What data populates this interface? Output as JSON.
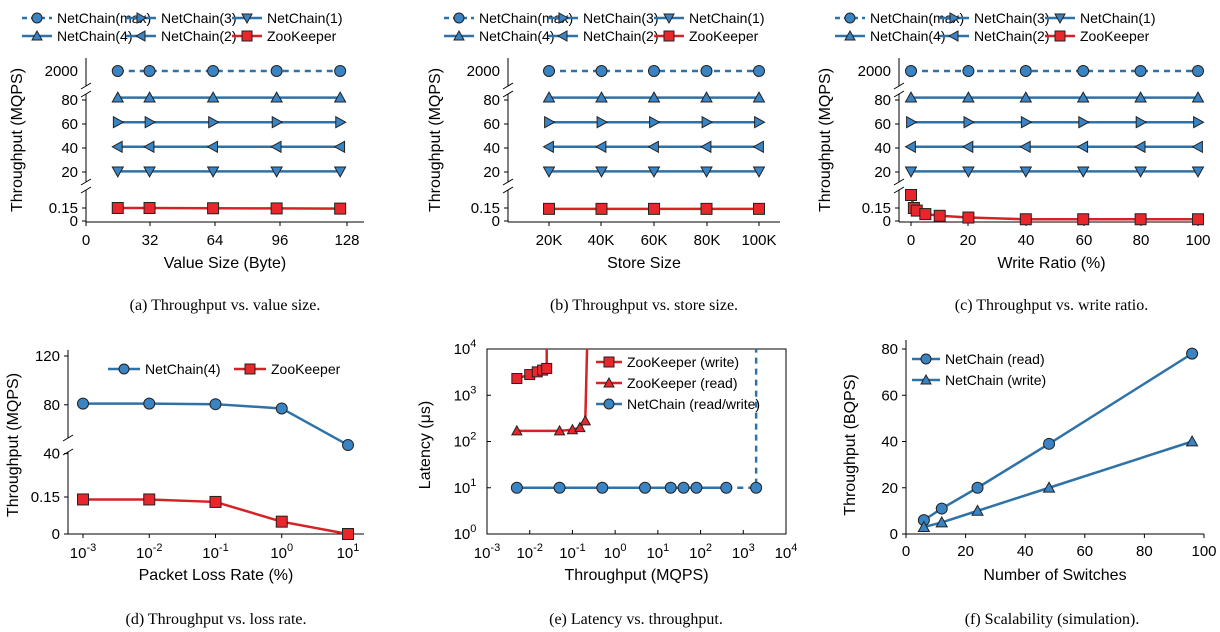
{
  "colors": {
    "netchain": "#2f72a8",
    "zookeeper": "#d62226",
    "marker_fill_netchain": "#3a84c4",
    "marker_fill_zookeeper": "#e8262c"
  },
  "chart_data": [
    {
      "type": "line",
      "caption": "(a)  Throughput vs. value size.",
      "xlabel": "Value Size (Byte)",
      "ylabel": "Throughput (MQPS)",
      "x_ticks": [
        "0",
        "32",
        "64",
        "96",
        "128"
      ],
      "xlim": [
        0,
        140
      ],
      "broken_axis": true,
      "legend_position": "top",
      "x": [
        16,
        32,
        64,
        96,
        128
      ],
      "series": [
        {
          "name": "NetChain(max)",
          "marker": "circle",
          "dashed": true,
          "values": [
            2000,
            2000,
            2000,
            2000,
            2000
          ]
        },
        {
          "name": "NetChain(4)",
          "marker": "triangle-up",
          "values": [
            82,
            82,
            82,
            82,
            82
          ]
        },
        {
          "name": "NetChain(3)",
          "marker": "triangle-right",
          "values": [
            61.5,
            61.5,
            61.5,
            61.5,
            61.5
          ]
        },
        {
          "name": "NetChain(2)",
          "marker": "triangle-left",
          "values": [
            41,
            41,
            41,
            41,
            41
          ]
        },
        {
          "name": "NetChain(1)",
          "marker": "triangle-down",
          "values": [
            20.5,
            20.5,
            20.5,
            20.5,
            20.5
          ]
        },
        {
          "name": "ZooKeeper",
          "marker": "square",
          "values": [
            0.15,
            0.15,
            0.147,
            0.145,
            0.143
          ]
        }
      ]
    },
    {
      "type": "line",
      "caption": "(b)  Throughput vs. store size.",
      "xlabel": "Store Size",
      "ylabel": "Throughput (MQPS)",
      "x_ticks": [
        "20K",
        "40K",
        "60K",
        "80K",
        "100K"
      ],
      "broken_axis": true,
      "legend_position": "top",
      "x": [
        20000,
        40000,
        60000,
        80000,
        100000
      ],
      "series": [
        {
          "name": "NetChain(max)",
          "marker": "circle",
          "dashed": true,
          "values": [
            2000,
            2000,
            2000,
            2000,
            2000
          ]
        },
        {
          "name": "NetChain(4)",
          "marker": "triangle-up",
          "values": [
            82,
            82,
            82,
            82,
            82
          ]
        },
        {
          "name": "NetChain(3)",
          "marker": "triangle-right",
          "values": [
            61.5,
            61.5,
            61.5,
            61.5,
            61.5
          ]
        },
        {
          "name": "NetChain(2)",
          "marker": "triangle-left",
          "values": [
            41,
            41,
            41,
            41,
            41
          ]
        },
        {
          "name": "NetChain(1)",
          "marker": "triangle-down",
          "values": [
            20.5,
            20.5,
            20.5,
            20.5,
            20.5
          ]
        },
        {
          "name": "ZooKeeper",
          "marker": "square",
          "values": [
            0.14,
            0.14,
            0.14,
            0.14,
            0.14
          ]
        }
      ]
    },
    {
      "type": "line",
      "caption": "(c)  Throughput vs. write ratio.",
      "xlabel": "Write Ratio (%)",
      "ylabel": "Throughput (MQPS)",
      "x_ticks": [
        "0",
        "20",
        "40",
        "60",
        "80",
        "100"
      ],
      "xlim": [
        0,
        100
      ],
      "broken_axis": true,
      "legend_position": "top",
      "x": [
        0,
        20,
        40,
        60,
        80,
        100
      ],
      "series": [
        {
          "name": "NetChain(max)",
          "marker": "circle",
          "dashed": true,
          "values": [
            2000,
            2000,
            2000,
            2000,
            2000,
            2000
          ]
        },
        {
          "name": "NetChain(4)",
          "marker": "triangle-up",
          "values": [
            82,
            82,
            82,
            82,
            82,
            82
          ]
        },
        {
          "name": "NetChain(3)",
          "marker": "triangle-right",
          "values": [
            61.5,
            61.5,
            61.5,
            61.5,
            61.5,
            61.5
          ]
        },
        {
          "name": "NetChain(2)",
          "marker": "triangle-left",
          "values": [
            41,
            41,
            41,
            41,
            41,
            41
          ]
        },
        {
          "name": "NetChain(1)",
          "marker": "triangle-down",
          "values": [
            20.5,
            20.5,
            20.5,
            20.5,
            20.5,
            20.5
          ]
        },
        {
          "name": "ZooKeeper",
          "marker": "square",
          "x": [
            0,
            1,
            2,
            5,
            10,
            20,
            40,
            60,
            80,
            100
          ],
          "values": [
            0.3,
            0.15,
            0.12,
            0.08,
            0.06,
            0.04,
            0.02,
            0.02,
            0.02,
            0.02
          ]
        }
      ]
    },
    {
      "type": "line",
      "caption": "(d)  Throughput vs. loss rate.",
      "xlabel": "Packet Loss Rate (%)",
      "ylabel": "Throughput (MQPS)",
      "x_scale": "log",
      "x_ticks": [
        "10-3",
        "10-2",
        "10-1",
        "100",
        "101"
      ],
      "broken_axis": true,
      "legend_position": "top",
      "x": [
        0.001,
        0.01,
        0.1,
        1,
        10
      ],
      "series": [
        {
          "name": "NetChain(4)",
          "marker": "circle",
          "values": [
            81,
            81,
            80.5,
            77,
            47
          ]
        },
        {
          "name": "ZooKeeper",
          "marker": "square",
          "values": [
            0.14,
            0.14,
            0.13,
            0.05,
            0
          ]
        }
      ]
    },
    {
      "type": "line",
      "caption": "(e)  Latency vs. throughput.",
      "xlabel": "Throughput (MQPS)",
      "ylabel": "Latency (μs)",
      "x_scale": "log",
      "y_scale": "log",
      "xlim": [
        0.001,
        10000
      ],
      "ylim": [
        1,
        10000
      ],
      "legend_position": "top-right",
      "series": [
        {
          "name": "ZooKeeper (write)",
          "marker": "square",
          "x": [
            0.005,
            0.01,
            0.015,
            0.02,
            0.025
          ],
          "values": [
            2300,
            2800,
            3200,
            3500,
            3800
          ]
        },
        {
          "name": "ZooKeeper (read)",
          "marker": "triangle-up",
          "x": [
            0.005,
            0.05,
            0.1,
            0.15,
            0.2
          ],
          "values": [
            170,
            170,
            180,
            200,
            280
          ]
        },
        {
          "name": "NetChain (read/write)",
          "marker": "circle",
          "x": [
            0.005,
            0.05,
            0.5,
            5,
            20,
            40,
            80,
            400,
            2000
          ],
          "values": [
            10,
            10,
            10,
            10,
            10,
            10,
            10,
            10,
            10
          ]
        }
      ]
    },
    {
      "type": "line",
      "caption": "(f)  Scalability (simulation).",
      "xlabel": "Number of Switches",
      "ylabel": "Throughput (BQPS)",
      "x_ticks": [
        "0",
        "20",
        "40",
        "60",
        "80",
        "100"
      ],
      "y_ticks": [
        "0",
        "20",
        "40",
        "60",
        "80"
      ],
      "xlim": [
        0,
        100
      ],
      "ylim": [
        0,
        80
      ],
      "legend_position": "top-left",
      "x": [
        6,
        12,
        24,
        48,
        96
      ],
      "series": [
        {
          "name": "NetChain (read)",
          "marker": "circle",
          "values": [
            6,
            11,
            20,
            39,
            78
          ]
        },
        {
          "name": "NetChain (write)",
          "marker": "triangle-up",
          "values": [
            3,
            5,
            10,
            20,
            40
          ]
        }
      ]
    }
  ],
  "figure_labels": {
    "a": {
      "ytick_2000": "2000",
      "yticks_mid": [
        "80",
        "60",
        "40",
        "20"
      ],
      "yticks_low": [
        "0.15",
        "0"
      ]
    },
    "d": {
      "yticks_top": [
        "120",
        "80",
        "40"
      ],
      "yticks_low": [
        "0.15",
        "0"
      ]
    },
    "e": {
      "yticks": [
        "10",
        "10",
        "10",
        "10",
        "10"
      ],
      "ysup": [
        "0",
        "1",
        "2",
        "3",
        "4"
      ],
      "xticks": [
        "10",
        "10",
        "10",
        "10",
        "10",
        "10",
        "10",
        "10"
      ],
      "xsup": [
        "-3",
        "-2",
        "-1",
        "0",
        "1",
        "2",
        "3",
        "4"
      ]
    },
    "d_x": {
      "base": [
        "10",
        "10",
        "10",
        "10",
        "10"
      ],
      "sup": [
        "-3",
        "-2",
        "-1",
        "0",
        "1"
      ]
    }
  }
}
